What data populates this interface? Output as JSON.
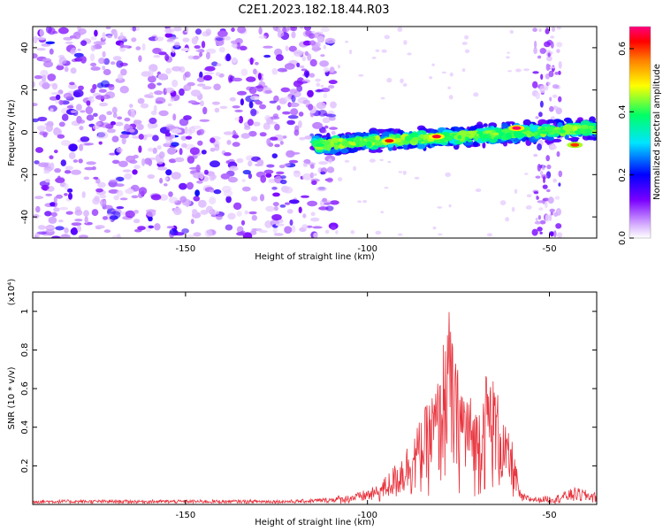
{
  "figure": {
    "title": "C2E1.2023.182.18.44.R03"
  },
  "chart_data": [
    {
      "type": "heatmap",
      "xlabel": "Height of straight line (km)",
      "ylabel": "Frequency (Hz)",
      "xlim": [
        -192,
        -37
      ],
      "ylim": [
        -50,
        50
      ],
      "x_ticks": [
        -150,
        -100,
        -50
      ],
      "y_ticks": [
        -40,
        -20,
        0,
        20,
        40
      ],
      "colorbar": {
        "label": "Normalized spectral amplitude",
        "range": [
          0.0,
          0.67
        ],
        "ticks": [
          "0.0",
          "0.2",
          "0.4",
          "0.6"
        ],
        "colors": [
          "#ffffff",
          "#d9b3ff",
          "#7a00ff",
          "#0000ff",
          "#00e5ff",
          "#00ff66",
          "#ffff00",
          "#ff8000",
          "#ff0000",
          "#ff0080"
        ]
      },
      "features": [
        {
          "region": "noise",
          "x": [
            -192,
            -115
          ],
          "y": [
            -50,
            50
          ],
          "level": 0.12
        },
        {
          "region": "band",
          "x": [
            -115,
            -37
          ],
          "y_center_start": -6,
          "y_center_end": 2,
          "width": 10,
          "level": 0.45
        },
        {
          "region": "column",
          "x": [
            -54,
            -47
          ],
          "y": [
            -50,
            50
          ],
          "level": 0.1
        }
      ],
      "peaks": [
        {
          "x": -94,
          "y": -4,
          "value": 0.62
        },
        {
          "x": -81,
          "y": -2,
          "value": 0.64
        },
        {
          "x": -59,
          "y": 2,
          "value": 0.66
        },
        {
          "x": -43,
          "y": -6,
          "value": 0.6
        }
      ]
    },
    {
      "type": "line",
      "xlabel": "Height of straight line (km)",
      "ylabel": "SNR (10 * v/v)",
      "y_multiplier": "(x10⁴)",
      "xlim": [
        -192,
        -37
      ],
      "ylim": [
        0,
        1.1
      ],
      "x_ticks": [
        -150,
        -100,
        -50
      ],
      "y_ticks": [
        0.2,
        0.4,
        0.6,
        0.8,
        1.0
      ],
      "color": "#e8323c",
      "envelope": [
        [
          -192,
          0.02
        ],
        [
          -120,
          0.02
        ],
        [
          -110,
          0.03
        ],
        [
          -103,
          0.06
        ],
        [
          -97,
          0.1
        ],
        [
          -92,
          0.22
        ],
        [
          -87,
          0.38
        ],
        [
          -83,
          0.55
        ],
        [
          -80,
          0.68
        ],
        [
          -78,
          1.08
        ],
        [
          -76,
          0.75
        ],
        [
          -73,
          0.62
        ],
        [
          -70,
          0.5
        ],
        [
          -67,
          0.72
        ],
        [
          -65,
          0.65
        ],
        [
          -62,
          0.4
        ],
        [
          -60,
          0.32
        ],
        [
          -58,
          0.06
        ],
        [
          -53,
          0.03
        ],
        [
          -48,
          0.05
        ],
        [
          -43,
          0.09
        ],
        [
          -37,
          0.06
        ]
      ]
    }
  ],
  "colors": {
    "line": "#e8323c",
    "axis": "#000000"
  }
}
